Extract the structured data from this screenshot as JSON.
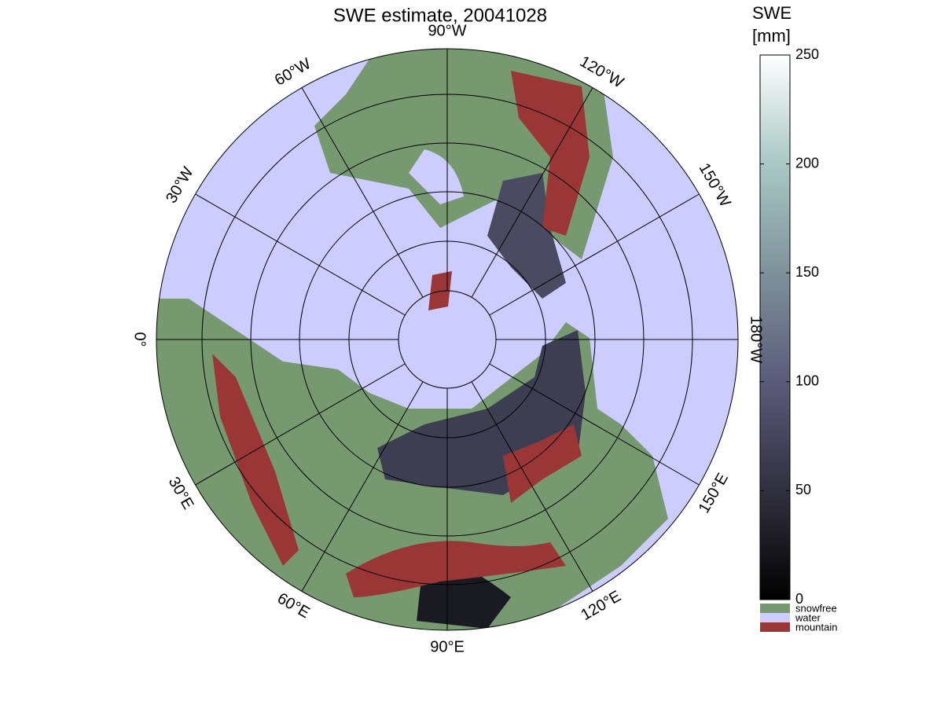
{
  "title": "SWE estimate, 20041028",
  "meridian_labels": [
    "90°W",
    "120°W",
    "150°W",
    "180°W",
    "150°E",
    "120°E",
    "90°E",
    "60°E",
    "30°E",
    "0°",
    "30°W",
    "60°W"
  ],
  "colorbar": {
    "title": [
      "SWE",
      "[mm]"
    ],
    "lim": [
      0,
      250
    ],
    "ticks": [
      0,
      50,
      100,
      150,
      200,
      250
    ]
  },
  "legend": [
    {
      "name": "snowfree",
      "color": "#76996f"
    },
    {
      "name": "water",
      "color": "#ccccff"
    },
    {
      "name": "mountain",
      "color": "#9a3636"
    }
  ]
}
